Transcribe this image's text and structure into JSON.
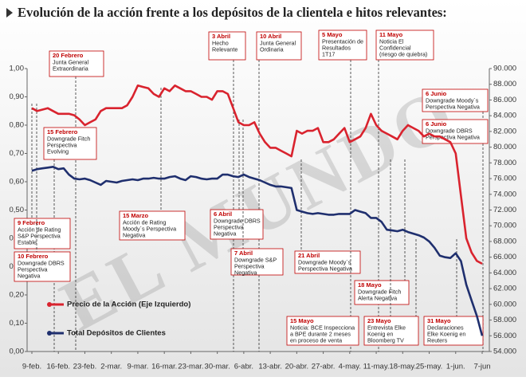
{
  "chart_data": {
    "type": "line",
    "title": "Evolución de la acción frente a los depósitos de la clientela e hitos relevantes:",
    "watermark": "EL MUNDO",
    "categories": [
      "9-feb.",
      null,
      null,
      null,
      null,
      "16-feb.",
      null,
      null,
      null,
      null,
      "23-feb.",
      null,
      null,
      null,
      null,
      "2-mar.",
      null,
      null,
      null,
      null,
      "9-mar.",
      null,
      null,
      null,
      null,
      "16-mar.",
      null,
      null,
      null,
      null,
      "23-mar.",
      null,
      null,
      null,
      null,
      "30-mar.",
      null,
      null,
      null,
      null,
      "6-abr.",
      null,
      null,
      null,
      null,
      "13-abr.",
      null,
      null,
      null,
      null,
      "20-abr.",
      null,
      null,
      null,
      null,
      "27-abr.",
      null,
      null,
      null,
      null,
      "4-may.",
      null,
      null,
      null,
      null,
      "11-may.",
      null,
      null,
      null,
      null,
      "18-may.",
      null,
      null,
      null,
      null,
      "25-may.",
      null,
      null,
      null,
      null,
      "1-jun.",
      null,
      null,
      null,
      null,
      "7-jun"
    ],
    "series": [
      {
        "name": "Precio de la Acción (Eje Izquierdo)",
        "color": "#d9232e",
        "axis": "y",
        "values": [
          0.86,
          0.85,
          0.855,
          0.86,
          0.85,
          0.84,
          0.84,
          0.84,
          0.835,
          0.82,
          0.8,
          0.81,
          0.82,
          0.85,
          0.86,
          0.86,
          0.86,
          0.86,
          0.87,
          0.9,
          0.94,
          0.935,
          0.93,
          0.91,
          0.9,
          0.93,
          0.92,
          0.94,
          0.93,
          0.92,
          0.92,
          0.91,
          0.9,
          0.9,
          0.89,
          0.92,
          0.92,
          0.91,
          0.86,
          0.81,
          0.8,
          0.8,
          0.81,
          0.77,
          0.74,
          0.72,
          0.72,
          0.71,
          0.7,
          0.69,
          0.78,
          0.77,
          0.78,
          0.78,
          0.79,
          0.74,
          0.74,
          0.75,
          0.77,
          0.79,
          0.74,
          0.75,
          0.76,
          0.79,
          0.84,
          0.8,
          0.78,
          0.77,
          0.76,
          0.75,
          0.78,
          0.8,
          0.79,
          0.78,
          0.76,
          0.77,
          0.76,
          0.76,
          0.75,
          0.74,
          0.7,
          0.55,
          0.4,
          0.35,
          0.32,
          0.31
        ]
      },
      {
        "name": "Total Depósitos de Clientes",
        "color": "#1f2f6e",
        "axis": "y2",
        "values": [
          77000,
          77200,
          77300,
          77400,
          77500,
          77200,
          77300,
          76500,
          76000,
          75900,
          76000,
          75800,
          75500,
          75200,
          75700,
          75600,
          75500,
          75700,
          75800,
          75900,
          75800,
          76000,
          76000,
          76100,
          76000,
          76000,
          76200,
          76300,
          76000,
          75800,
          76300,
          76200,
          76000,
          75900,
          76000,
          76000,
          76500,
          76500,
          76300,
          76200,
          76500,
          76200,
          76000,
          75800,
          75500,
          75200,
          75000,
          75000,
          74900,
          74800,
          72000,
          71800,
          71600,
          71500,
          71600,
          71500,
          71400,
          71400,
          71500,
          71500,
          71500,
          72000,
          71800,
          71600,
          71000,
          71000,
          70500,
          69500,
          69400,
          69300,
          69500,
          69200,
          69000,
          68800,
          68500,
          68000,
          67200,
          66200,
          66000,
          65900,
          66500,
          65500,
          62500,
          60500,
          58500,
          56000
        ]
      }
    ],
    "ylim": [
      0,
      1
    ],
    "yticks": [
      {
        "value": 0,
        "label": "0,00"
      },
      {
        "value": 0.1,
        "label": "0,10"
      },
      {
        "value": 0.2,
        "label": "0,20"
      },
      {
        "value": 0.3,
        "label": "0,30"
      },
      {
        "value": 0.4,
        "label": "0,40"
      },
      {
        "value": 0.5,
        "label": "0,50"
      },
      {
        "value": 0.6,
        "label": "0,60"
      },
      {
        "value": 0.7,
        "label": "0,70"
      },
      {
        "value": 0.8,
        "label": "0,80"
      },
      {
        "value": 0.9,
        "label": "0,90"
      },
      {
        "value": 1,
        "label": "1,00"
      }
    ],
    "y2lim": [
      54000,
      90000
    ],
    "y2ticks": [
      {
        "value": 54000,
        "label": "54.000"
      },
      {
        "value": 56000,
        "label": "56.000"
      },
      {
        "value": 58000,
        "label": "58.000"
      },
      {
        "value": 60000,
        "label": "60.000"
      },
      {
        "value": 62000,
        "label": "62.000"
      },
      {
        "value": 64000,
        "label": "64.000"
      },
      {
        "value": 66000,
        "label": "66.000"
      },
      {
        "value": 68000,
        "label": "68.000"
      },
      {
        "value": 70000,
        "label": "70.000"
      },
      {
        "value": 72000,
        "label": "72.000"
      },
      {
        "value": 74000,
        "label": "74.000"
      },
      {
        "value": 76000,
        "label": "76.000"
      },
      {
        "value": 78000,
        "label": "78.000"
      },
      {
        "value": 80000,
        "label": "80.000"
      },
      {
        "value": 82000,
        "label": "82.000"
      },
      {
        "value": 84000,
        "label": "84.000"
      },
      {
        "value": 86000,
        "label": "86.000"
      },
      {
        "value": 88000,
        "label": "88.000"
      },
      {
        "value": 90000,
        "label": "90.000"
      }
    ],
    "grid": false,
    "annotations": [
      {
        "date": "20 Febrero",
        "lines": [
          "Junta General",
          "Extraordinaria"
        ]
      },
      {
        "date": "15 Febrero",
        "lines": [
          "Downgrade Fitch",
          "Perspectiva",
          "Evolving"
        ]
      },
      {
        "date": "9 Febrero",
        "lines": [
          "Acción de Rating",
          "S&P Perspectiva",
          "Estable"
        ]
      },
      {
        "date": "10 Febrero",
        "lines": [
          "Downgrade DBRS",
          "Perspectiva",
          "Negativa"
        ]
      },
      {
        "date": "15 Marzo",
        "lines": [
          "Acción de Rating",
          "Moody´s Perspectiva",
          "Negativa"
        ]
      },
      {
        "date": "3 Abril",
        "lines": [
          "Hecho",
          "Relevante"
        ]
      },
      {
        "date": "10 Abril",
        "lines": [
          "Junta General",
          "Ordinaria"
        ]
      },
      {
        "date": "6 Abril",
        "lines": [
          "Downgrade DBRS",
          "Perspectiva",
          "Negativa"
        ]
      },
      {
        "date": "7 Abril",
        "lines": [
          "Downgrade S&P",
          "Perspectiva",
          "Negativa"
        ]
      },
      {
        "date": "21 Abril",
        "lines": [
          "Downgrade Moody´s",
          "Perspectiva Negativa"
        ]
      },
      {
        "date": "5 Mayo",
        "lines": [
          "Presentación de",
          "Resultados",
          "1T17"
        ]
      },
      {
        "date": "11 Mayo",
        "lines": [
          "Noticia El",
          "Confidencial",
          "(riesgo de quiebra)"
        ]
      },
      {
        "date": "6 Junio",
        "lines": [
          "Downgrade Moody´s",
          "Perspectiva Negativa"
        ]
      },
      {
        "date": "6 Junio",
        "lines": [
          "Downgrade DBRS",
          "Perspectiva Negativa"
        ]
      },
      {
        "date": "18 Mayo",
        "lines": [
          "Downgrade Fitch",
          "Alerta Negativa"
        ]
      },
      {
        "date": "15 Mayo",
        "lines": [
          "Noticia: BCE Inspecciona",
          "a BPE durante 2 meses",
          "en proceso de venta"
        ]
      },
      {
        "date": "23 Mayo",
        "lines": [
          "Entrevista Elke",
          "Koenig en",
          "Bloomberg TV"
        ]
      },
      {
        "date": "31 Mayo",
        "lines": [
          "Declaraciones",
          "Elke Koenig en",
          "Reuters"
        ]
      }
    ]
  }
}
